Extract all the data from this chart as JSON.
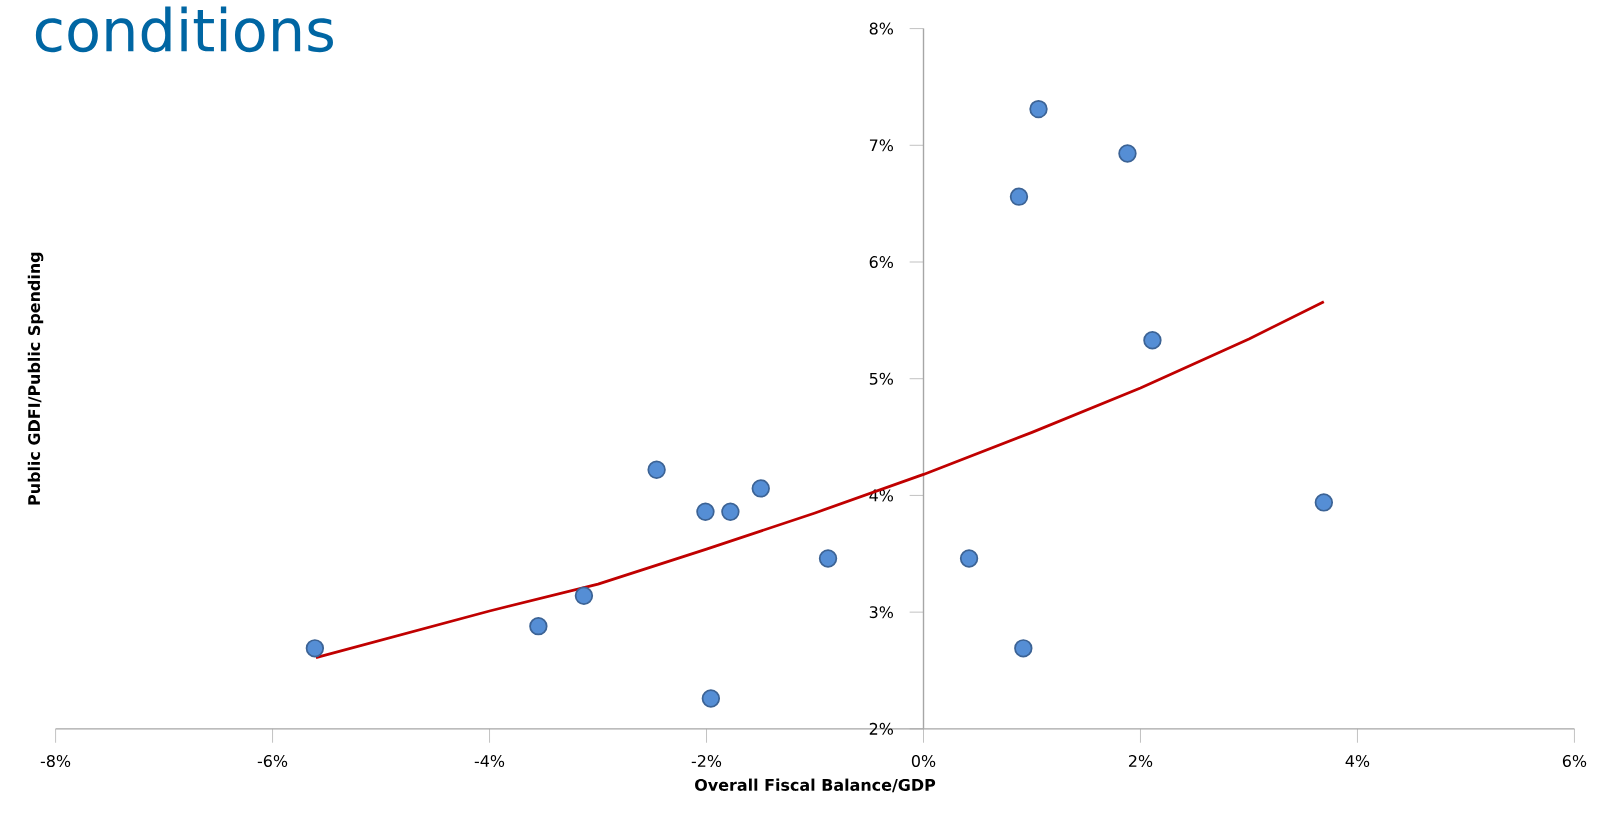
{
  "chart_data": {
    "type": "scatter",
    "title": "conditions",
    "xlabel": "Overall Fiscal Balance/GDP",
    "ylabel": "Public GDFI/Public Spending",
    "xlim": [
      -8,
      6
    ],
    "ylim": [
      2,
      8
    ],
    "xticks": [
      {
        "value": -8,
        "label": "-8%"
      },
      {
        "value": -6,
        "label": "-6%"
      },
      {
        "value": -4,
        "label": "-4%"
      },
      {
        "value": -2,
        "label": "-2%"
      },
      {
        "value": 0,
        "label": "0%"
      },
      {
        "value": 2,
        "label": "2%"
      },
      {
        "value": 4,
        "label": "4%"
      },
      {
        "value": 6,
        "label": "6%"
      }
    ],
    "yticks": [
      {
        "value": 2,
        "label": "2%"
      },
      {
        "value": 3,
        "label": "3%"
      },
      {
        "value": 4,
        "label": "4%"
      },
      {
        "value": 5,
        "label": "5%"
      },
      {
        "value": 6,
        "label": "6%"
      },
      {
        "value": 7,
        "label": "7%"
      },
      {
        "value": 8,
        "label": "8%"
      }
    ],
    "grid": false,
    "series": [
      {
        "marker": "circle",
        "color": "#558ed5",
        "x": [
          -5.61,
          -3.55,
          -3.13,
          -2.46,
          -2.01,
          -1.78,
          -1.5,
          -1.96,
          -0.88,
          0.42,
          0.88,
          1.06,
          0.92,
          1.88,
          2.11,
          3.69
        ],
        "values": [
          2.69,
          2.88,
          3.14,
          4.22,
          3.86,
          3.86,
          4.06,
          2.26,
          3.46,
          3.46,
          6.56,
          7.31,
          2.69,
          6.93,
          5.33,
          3.94
        ]
      },
      {
        "type": "line",
        "marker": "none",
        "color": "#c00000",
        "x": [
          -5.6,
          -4,
          -3,
          -2,
          -1,
          0,
          1,
          2,
          3,
          3.69
        ],
        "values": [
          2.61,
          3.01,
          3.24,
          3.54,
          3.85,
          4.18,
          4.54,
          4.92,
          5.34,
          5.66
        ]
      }
    ]
  }
}
